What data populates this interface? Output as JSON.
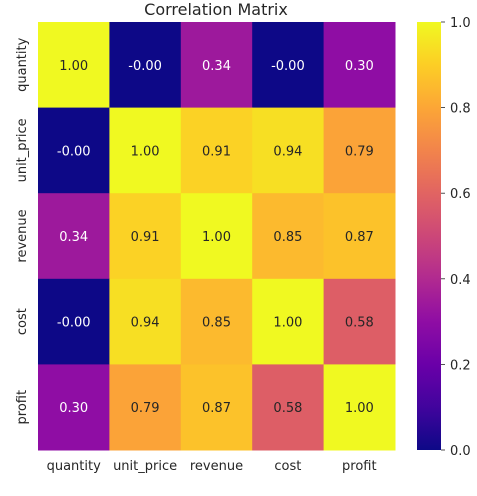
{
  "chart_data": {
    "type": "heatmap",
    "title": "Correlation Matrix",
    "xlabel": "",
    "ylabel": "",
    "x_categories": [
      "quantity",
      "unit_price",
      "revenue",
      "cost",
      "profit"
    ],
    "y_categories": [
      "quantity",
      "unit_price",
      "revenue",
      "cost",
      "profit"
    ],
    "values": [
      [
        1.0,
        -0.0,
        0.34,
        -0.0,
        0.3
      ],
      [
        -0.0,
        1.0,
        0.91,
        0.94,
        0.79
      ],
      [
        0.34,
        0.91,
        1.0,
        0.85,
        0.87
      ],
      [
        -0.0,
        0.94,
        0.85,
        1.0,
        0.58
      ],
      [
        0.3,
        0.79,
        0.87,
        0.58,
        1.0
      ]
    ],
    "cell_labels": [
      [
        "1.00",
        "-0.00",
        "0.34",
        "-0.00",
        "0.30"
      ],
      [
        "-0.00",
        "1.00",
        "0.91",
        "0.94",
        "0.79"
      ],
      [
        "0.34",
        "0.91",
        "1.00",
        "0.85",
        "0.87"
      ],
      [
        "-0.00",
        "0.94",
        "0.85",
        "1.00",
        "0.58"
      ],
      [
        "0.30",
        "0.79",
        "0.87",
        "0.58",
        "1.00"
      ]
    ],
    "colormap": "plasma",
    "colorbar": {
      "range": [
        0,
        1
      ],
      "ticks": [
        0.0,
        0.2,
        0.4,
        0.6,
        0.8,
        1.0
      ],
      "tick_labels": [
        "0.0",
        "0.2",
        "0.4",
        "0.6",
        "0.8",
        "1.0"
      ],
      "position": "right"
    },
    "colors": {
      "text_dark": "#262626",
      "text_light": "#ffffff"
    }
  }
}
